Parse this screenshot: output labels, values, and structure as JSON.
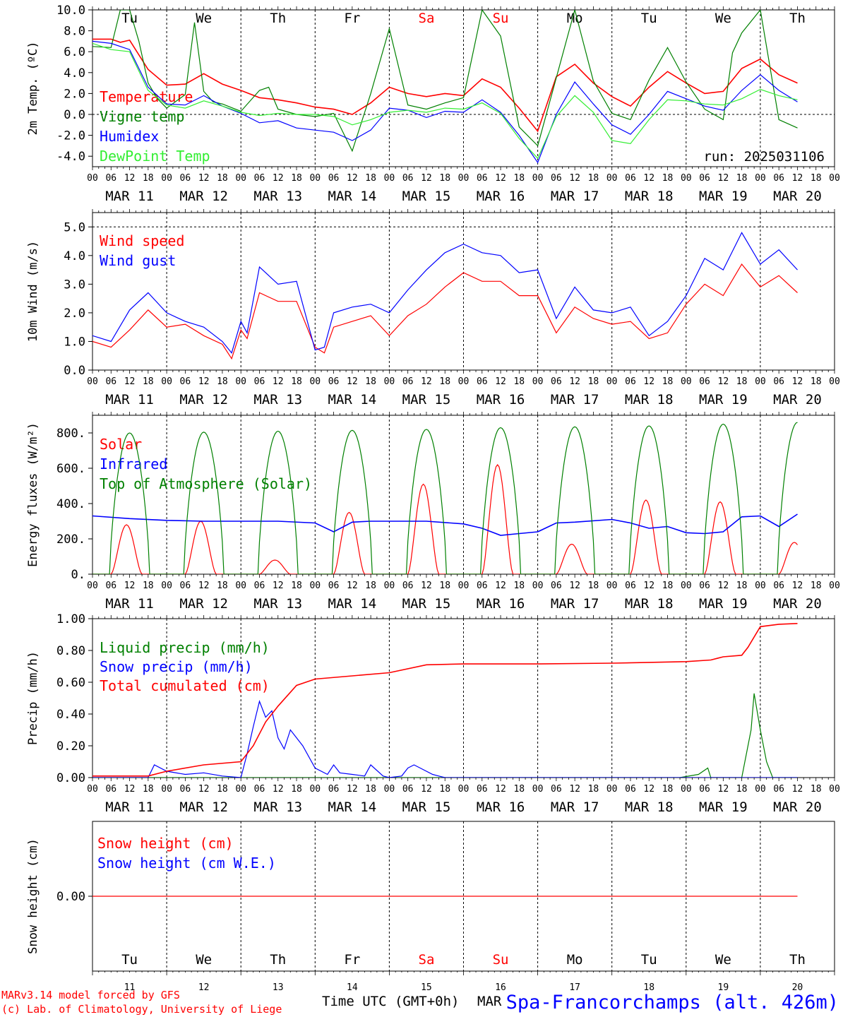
{
  "footer": {
    "credit_line1": "MARv3.14 model forced by GFS",
    "credit_line2": "(c) Lab. of Climatology, University of Liege",
    "time_axis_label": "Time UTC (GMT+0h)",
    "month_label": "MAR",
    "station": "Spa-Francorchamps (alt. 426m)"
  },
  "days": [
    {
      "date": "MAR 11",
      "num": "11",
      "dow": "Tu",
      "weekend": false
    },
    {
      "date": "MAR 12",
      "num": "12",
      "dow": "We",
      "weekend": false
    },
    {
      "date": "MAR 13",
      "num": "13",
      "dow": "Th",
      "weekend": false
    },
    {
      "date": "MAR 14",
      "num": "14",
      "dow": "Fr",
      "weekend": false
    },
    {
      "date": "MAR 15",
      "num": "15",
      "dow": "Sa",
      "weekend": true
    },
    {
      "date": "MAR 16",
      "num": "16",
      "dow": "Su",
      "weekend": true
    },
    {
      "date": "MAR 17",
      "num": "17",
      "dow": "Mo",
      "weekend": false
    },
    {
      "date": "MAR 18",
      "num": "18",
      "dow": "Tu",
      "weekend": false
    },
    {
      "date": "MAR 19",
      "num": "19",
      "dow": "We",
      "weekend": false
    },
    {
      "date": "MAR 20",
      "num": "20",
      "dow": "Th",
      "weekend": false
    }
  ],
  "hour_labels": [
    "00",
    "06",
    "12",
    "18"
  ],
  "colors": {
    "red": "#ff0000",
    "green": "#008000",
    "blue": "#0000ff",
    "lightgreen": "#33ee33",
    "weekend": "#ff0000"
  },
  "chart_data": [
    {
      "type": "line",
      "id": "temperature",
      "ylabel": "2m Temp. (ºC)",
      "ylim": [
        -5,
        10
      ],
      "yticks": [
        "10.0",
        "8.0",
        "6.0",
        "4.0",
        "2.0",
        "0.0",
        "-2.0",
        "-4.0"
      ],
      "annotation": "run: 2025031106",
      "show_dow": true,
      "x_unit": "hours since MAR 11 00 UTC",
      "series": [
        {
          "name": "Temperature",
          "color": "#ff0000",
          "x": [
            0,
            6,
            9,
            12,
            18,
            24,
            30,
            36,
            42,
            48,
            54,
            60,
            66,
            72,
            78,
            84,
            90,
            96,
            102,
            108,
            114,
            120,
            126,
            132,
            138,
            144,
            150,
            156,
            162,
            168,
            174,
            180,
            186,
            192,
            198,
            204,
            210,
            216,
            222,
            228
          ],
          "y": [
            7.2,
            7.2,
            6.9,
            7.1,
            4.3,
            2.8,
            2.9,
            3.9,
            2.9,
            2.3,
            1.6,
            1.4,
            1.1,
            0.7,
            0.5,
            0.0,
            1.1,
            2.6,
            2.0,
            1.7,
            2.0,
            1.8,
            3.4,
            2.6,
            0.6,
            -1.6,
            3.6,
            4.8,
            3.0,
            1.7,
            0.8,
            2.6,
            4.1,
            3.0,
            2.0,
            2.2,
            4.4,
            5.3,
            3.8,
            3.0
          ]
        },
        {
          "name": "Vigne temp",
          "color": "#008000",
          "x": [
            0,
            6,
            9,
            12,
            15,
            18,
            21,
            24,
            30,
            33,
            36,
            39,
            42,
            48,
            54,
            57,
            60,
            66,
            72,
            78,
            84,
            90,
            96,
            102,
            108,
            114,
            120,
            126,
            132,
            138,
            144,
            150,
            156,
            162,
            168,
            174,
            180,
            186,
            192,
            198,
            204,
            207,
            210,
            216,
            222,
            228
          ],
          "y": [
            6.5,
            6.4,
            10.0,
            10.0,
            7.0,
            3.0,
            1.5,
            0.6,
            1.9,
            8.8,
            2.2,
            1.2,
            1.0,
            0.3,
            2.3,
            2.6,
            0.5,
            0.0,
            -0.2,
            0.1,
            -3.5,
            2.0,
            8.2,
            0.9,
            0.5,
            1.1,
            1.6,
            10.0,
            7.5,
            -1.2,
            -3.0,
            3.5,
            10.0,
            3.2,
            0.1,
            -0.5,
            3.3,
            6.4,
            3.1,
            0.5,
            -0.5,
            5.9,
            7.8,
            10.0,
            -0.5,
            -1.3
          ]
        },
        {
          "name": "Humidex",
          "color": "#0000ff",
          "x": [
            0,
            6,
            12,
            18,
            24,
            30,
            36,
            42,
            48,
            54,
            60,
            66,
            72,
            78,
            84,
            90,
            96,
            102,
            108,
            114,
            120,
            126,
            132,
            138,
            144,
            150,
            156,
            162,
            168,
            174,
            180,
            186,
            192,
            198,
            204,
            210,
            216,
            222,
            228
          ],
          "y": [
            7.0,
            6.8,
            6.2,
            2.6,
            1.0,
            0.9,
            1.8,
            0.8,
            0.1,
            -0.8,
            -0.6,
            -1.3,
            -1.5,
            -1.7,
            -2.5,
            -1.5,
            0.6,
            0.4,
            -0.3,
            0.3,
            0.2,
            1.4,
            0.2,
            -2.0,
            -4.6,
            0.0,
            3.1,
            1.0,
            -1.0,
            -1.9,
            0.0,
            2.2,
            1.5,
            0.8,
            0.4,
            2.3,
            3.8,
            2.3,
            1.2
          ]
        },
        {
          "name": "DewPoint Temp",
          "color": "#33ee33",
          "x": [
            0,
            6,
            12,
            18,
            24,
            30,
            36,
            42,
            48,
            54,
            60,
            66,
            72,
            78,
            84,
            90,
            96,
            102,
            108,
            114,
            120,
            126,
            132,
            138,
            144,
            150,
            156,
            162,
            168,
            174,
            180,
            186,
            192,
            198,
            204,
            210,
            216,
            222,
            228
          ],
          "y": [
            6.8,
            6.2,
            6.0,
            2.3,
            0.9,
            0.6,
            1.3,
            0.8,
            0.2,
            -0.1,
            0.1,
            0.0,
            0.0,
            -0.2,
            -1.0,
            -0.5,
            0.2,
            0.4,
            0.2,
            0.6,
            0.5,
            1.1,
            0.1,
            -2.3,
            -4.2,
            -0.2,
            1.8,
            0.2,
            -2.5,
            -2.8,
            -0.5,
            1.4,
            1.3,
            1.0,
            0.9,
            1.5,
            2.4,
            1.8,
            1.4
          ]
        }
      ]
    },
    {
      "type": "line",
      "id": "wind",
      "ylabel": "10m Wind (m/s)",
      "ylim": [
        0,
        5.5
      ],
      "yticks": [
        "5.0",
        "4.0",
        "3.0",
        "2.0",
        "1.0",
        "0.0"
      ],
      "hline": 5.0,
      "x_unit": "hours since MAR 11 00 UTC",
      "series": [
        {
          "name": "Wind speed",
          "color": "#ff0000",
          "x": [
            0,
            6,
            12,
            18,
            24,
            30,
            36,
            42,
            45,
            48,
            50,
            54,
            60,
            66,
            72,
            75,
            78,
            84,
            90,
            96,
            102,
            108,
            114,
            120,
            126,
            132,
            138,
            144,
            150,
            156,
            162,
            168,
            174,
            180,
            186,
            192,
            198,
            204,
            210,
            216,
            222,
            228
          ],
          "y": [
            1.0,
            0.8,
            1.4,
            2.1,
            1.5,
            1.6,
            1.2,
            0.9,
            0.4,
            1.4,
            1.1,
            2.7,
            2.4,
            2.4,
            0.8,
            0.6,
            1.5,
            1.7,
            1.9,
            1.2,
            1.9,
            2.3,
            2.9,
            3.4,
            3.1,
            3.1,
            2.6,
            2.6,
            1.3,
            2.2,
            1.8,
            1.6,
            1.7,
            1.1,
            1.3,
            2.3,
            3.0,
            2.6,
            3.7,
            2.9,
            3.3,
            2.7
          ]
        },
        {
          "name": "Wind gust",
          "color": "#0000ff",
          "x": [
            0,
            6,
            12,
            18,
            24,
            30,
            36,
            42,
            45,
            48,
            50,
            54,
            60,
            66,
            72,
            75,
            78,
            84,
            90,
            96,
            102,
            108,
            114,
            120,
            126,
            132,
            138,
            144,
            150,
            156,
            162,
            168,
            174,
            180,
            186,
            192,
            198,
            204,
            210,
            216,
            222,
            228
          ],
          "y": [
            1.2,
            1.0,
            2.1,
            2.7,
            2.0,
            1.7,
            1.5,
            1.0,
            0.6,
            1.7,
            1.3,
            3.6,
            3.0,
            3.1,
            0.7,
            0.8,
            2.0,
            2.2,
            2.3,
            2.0,
            2.8,
            3.5,
            4.1,
            4.4,
            4.1,
            4.0,
            3.4,
            3.5,
            1.8,
            2.9,
            2.1,
            2.0,
            2.2,
            1.2,
            1.7,
            2.6,
            3.9,
            3.5,
            4.8,
            3.7,
            4.2,
            3.5
          ]
        }
      ]
    },
    {
      "type": "line",
      "id": "energy",
      "ylabel": "Energy fluxes (W/m²)",
      "ylim": [
        0,
        900
      ],
      "yticks": [
        "800.",
        "600.",
        "400.",
        "200.",
        "0."
      ],
      "x_unit": "hours since MAR 11 00 UTC",
      "solar_noon_peaks": [
        [
          11,
          280
        ],
        [
          35,
          300
        ],
        [
          59,
          80
        ],
        [
          83,
          350
        ],
        [
          107,
          510
        ],
        [
          131,
          620
        ],
        [
          155,
          170
        ],
        [
          179,
          420
        ],
        [
          203,
          410
        ],
        [
          227,
          180
        ]
      ],
      "toa_peaks": [
        800,
        805,
        810,
        815,
        820,
        830,
        835,
        840,
        850,
        860
      ],
      "series": [
        {
          "name": "Solar",
          "color": "#ff0000"
        },
        {
          "name": "Infrared",
          "color": "#0000ff",
          "x": [
            0,
            12,
            24,
            36,
            48,
            60,
            72,
            78,
            84,
            90,
            96,
            108,
            120,
            126,
            132,
            138,
            144,
            150,
            156,
            168,
            174,
            180,
            186,
            192,
            198,
            204,
            210,
            216,
            222,
            228
          ],
          "y": [
            330,
            315,
            305,
            300,
            300,
            300,
            290,
            240,
            295,
            300,
            300,
            300,
            285,
            260,
            220,
            230,
            240,
            290,
            295,
            310,
            290,
            260,
            270,
            235,
            230,
            240,
            325,
            330,
            270,
            340
          ]
        },
        {
          "name": "Top of Atmosphere (Solar)",
          "color": "#008000"
        }
      ]
    },
    {
      "type": "line",
      "id": "precip",
      "ylabel": "Precip (mm/h)",
      "ylim": [
        0,
        1.0
      ],
      "yticks": [
        "1.00",
        "0.80",
        "0.60",
        "0.40",
        "0.20",
        "0.00"
      ],
      "x_unit": "hours since MAR 11 00 UTC",
      "series": [
        {
          "name": "Liquid precip (mm/h)",
          "color": "#008000",
          "x": [
            0,
            190,
            196,
            199,
            200,
            210,
            213,
            214,
            216,
            218,
            220,
            228
          ],
          "y": [
            0.0,
            0.0,
            0.02,
            0.06,
            0.0,
            0.0,
            0.3,
            0.53,
            0.3,
            0.1,
            0.0,
            0.0
          ]
        },
        {
          "name": "Snow precip (mm/h)",
          "color": "#0000ff",
          "x": [
            0,
            18,
            20,
            24,
            30,
            36,
            42,
            48,
            50,
            52,
            54,
            56,
            58,
            60,
            62,
            64,
            68,
            72,
            76,
            78,
            80,
            84,
            88,
            90,
            94,
            96,
            100,
            102,
            104,
            106,
            110,
            112,
            114,
            120,
            228
          ],
          "y": [
            0.0,
            0.0,
            0.08,
            0.04,
            0.02,
            0.03,
            0.01,
            0.0,
            0.15,
            0.32,
            0.48,
            0.38,
            0.42,
            0.25,
            0.18,
            0.3,
            0.2,
            0.06,
            0.02,
            0.08,
            0.03,
            0.02,
            0.01,
            0.08,
            0.01,
            0.0,
            0.01,
            0.06,
            0.08,
            0.06,
            0.02,
            0.01,
            0.0,
            0.0,
            0.0
          ]
        },
        {
          "name": "Total cumulated (cm)",
          "color": "#ff0000",
          "x": [
            0,
            18,
            24,
            36,
            48,
            52,
            56,
            60,
            66,
            72,
            84,
            96,
            108,
            120,
            144,
            168,
            180,
            192,
            200,
            204,
            210,
            212,
            216,
            222,
            228
          ],
          "y": [
            0.01,
            0.01,
            0.04,
            0.08,
            0.1,
            0.2,
            0.35,
            0.45,
            0.58,
            0.62,
            0.64,
            0.66,
            0.71,
            0.715,
            0.715,
            0.72,
            0.725,
            0.73,
            0.74,
            0.76,
            0.77,
            0.82,
            0.95,
            0.965,
            0.97
          ]
        }
      ]
    },
    {
      "type": "line",
      "id": "snow",
      "ylabel": "Snow height (cm)",
      "ylim": [
        -1,
        1
      ],
      "yticks": [
        "0.00"
      ],
      "show_dow_bottom": true,
      "x_unit": "hours since MAR 11 00 UTC",
      "series": [
        {
          "name": "Snow height (cm)",
          "color": "#ff0000",
          "x": [
            0,
            228
          ],
          "y": [
            0,
            0
          ]
        },
        {
          "name": "Snow height (cm W.E.)",
          "color": "#0000ff"
        }
      ]
    }
  ]
}
